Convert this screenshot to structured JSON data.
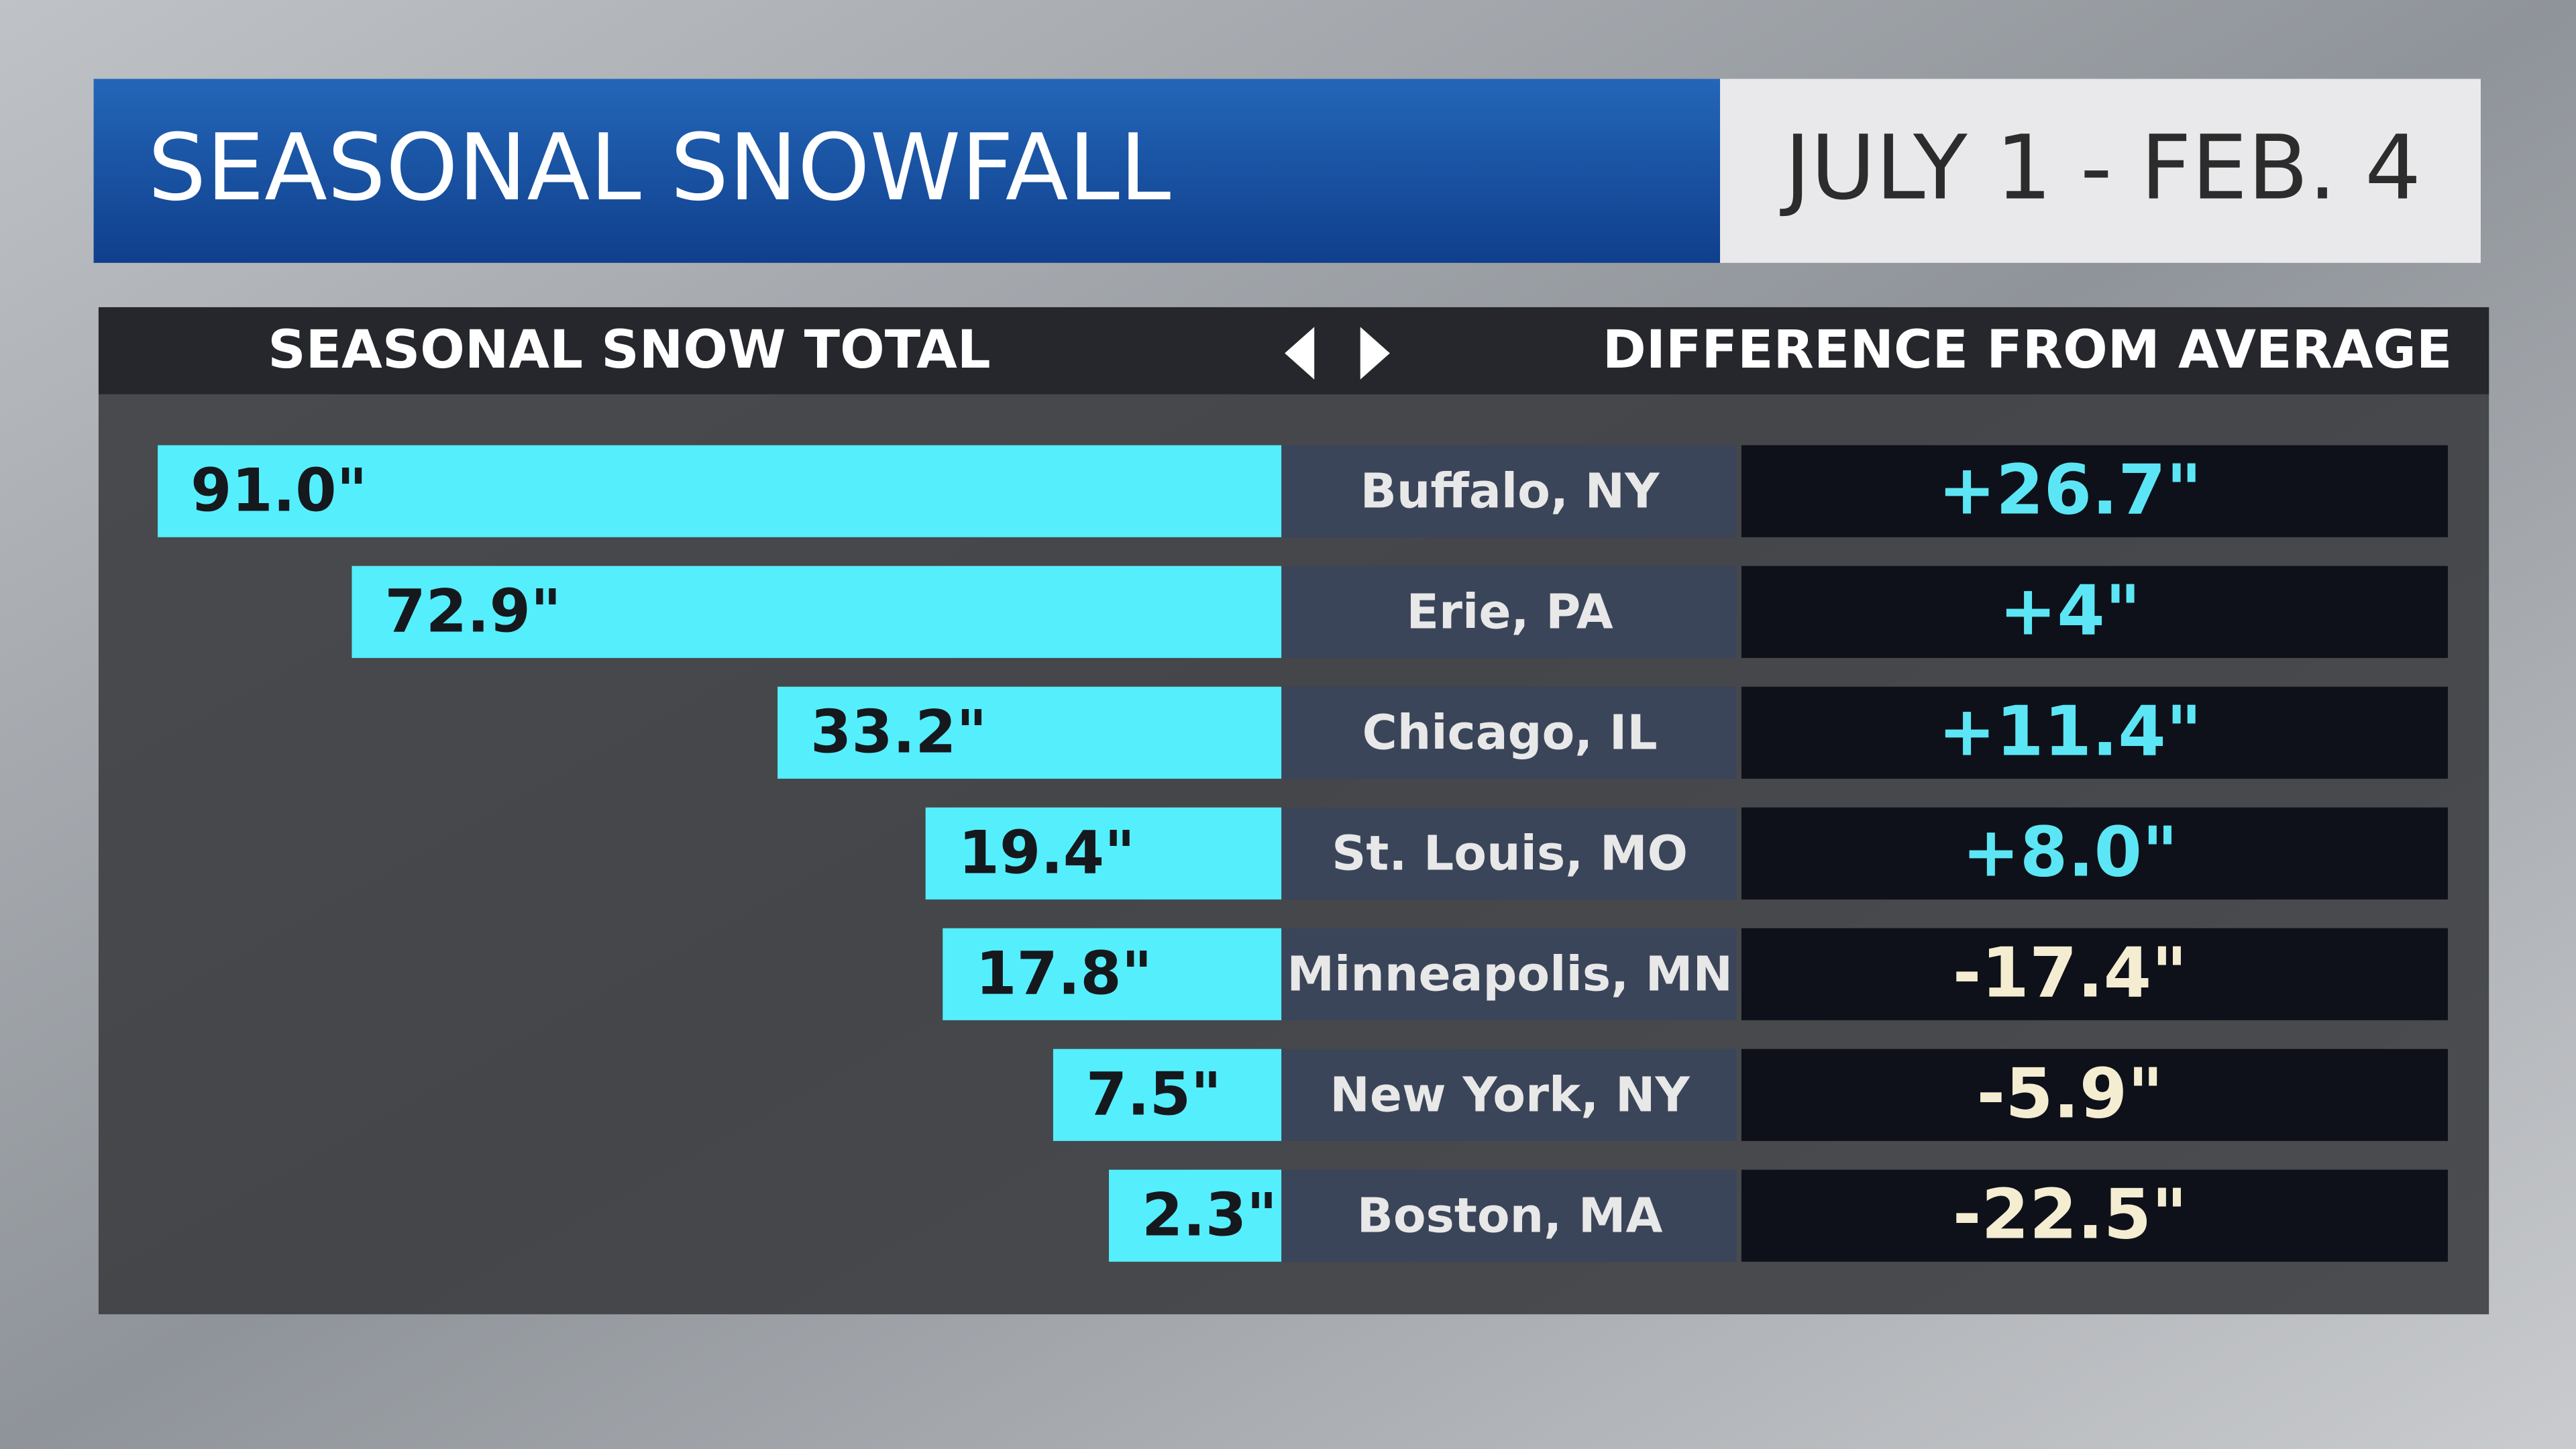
{
  "chart_data": {
    "type": "bar",
    "orientation": "horizontal",
    "title": "SEASONAL SNOWFALL",
    "subtitle": "JULY 1 - FEB. 4",
    "value_header": "SEASONAL SNOW TOTAL",
    "difference_header": "DIFFERENCE FROM AVERAGE",
    "color": "#55eefc",
    "categories": [
      "Buffalo, NY",
      "Erie, PA",
      "Chicago, IL",
      "St. Louis, MO",
      "Minneapolis, MN",
      "New York, NY",
      "Boston, MA"
    ],
    "values": [
      91.0,
      72.9,
      33.2,
      19.4,
      17.8,
      7.5,
      2.3
    ],
    "value_labels": [
      "91.0\"",
      "72.9\"",
      "33.2\"",
      "19.4\"",
      "17.8\"",
      "7.5\"",
      "2.3\""
    ],
    "differences": [
      {
        "value": 26.7,
        "label": "+26.7\""
      },
      {
        "value": 4,
        "label": "+4\""
      },
      {
        "value": 11.4,
        "label": "+11.4\""
      },
      {
        "value": 8.0,
        "label": "+8.0\""
      },
      {
        "value": -17.4,
        "label": "-17.4\""
      },
      {
        "value": -5.9,
        "label": "-5.9\""
      },
      {
        "value": -22.5,
        "label": "-22.5\""
      }
    ]
  }
}
